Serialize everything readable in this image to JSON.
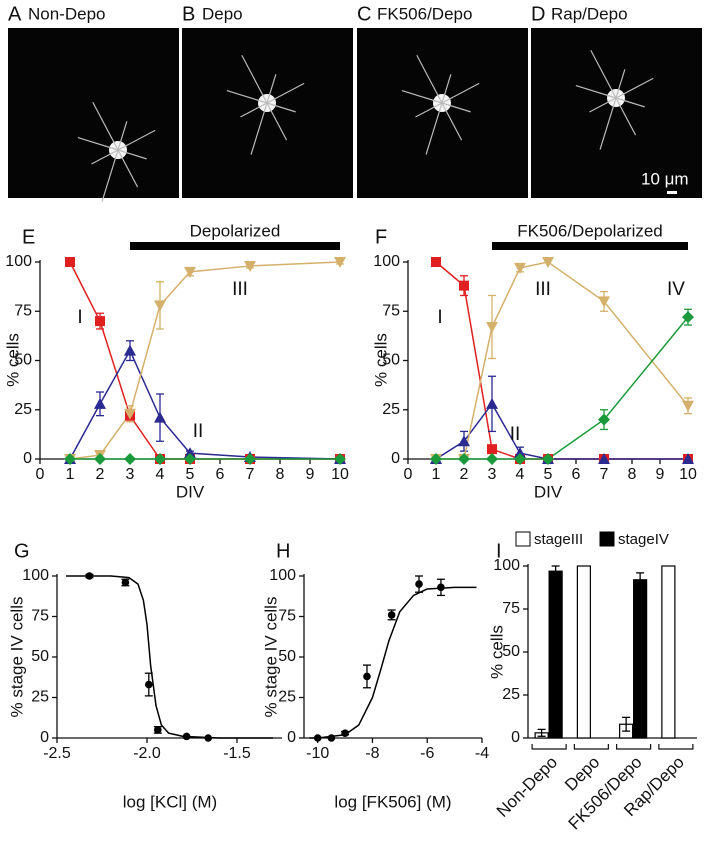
{
  "image_panels": [
    {
      "letter": "A",
      "label": "Non-Depo"
    },
    {
      "letter": "B",
      "label": "Depo"
    },
    {
      "letter": "C",
      "label": "FK506/Depo"
    },
    {
      "letter": "D",
      "label": "Rap/Depo",
      "scale_label": "10 μm"
    }
  ],
  "chart_data": [
    {
      "type": "line",
      "panel": "E",
      "xlabel": "DIV",
      "ylabel": "% cells",
      "x": [
        1,
        2,
        3,
        4,
        5,
        7,
        10
      ],
      "xlim": [
        0,
        10
      ],
      "xticks": [
        0,
        1,
        2,
        3,
        4,
        5,
        6,
        7,
        8,
        9,
        10
      ],
      "ylim": [
        0,
        100
      ],
      "yticks": [
        0,
        25,
        50,
        75,
        100
      ],
      "treatment": {
        "label": "Depolarized",
        "start": 3,
        "end": 10
      },
      "series": [
        {
          "name": "I",
          "color": "#e02020",
          "marker": "square",
          "values": [
            100,
            70,
            22,
            0,
            0,
            0,
            0
          ],
          "errors": [
            0,
            4,
            3,
            0,
            0,
            0,
            0
          ]
        },
        {
          "name": "II",
          "color": "#2a2a90",
          "marker": "triangle",
          "values": [
            0,
            28,
            55,
            21,
            3,
            1,
            0
          ],
          "errors": [
            0,
            6,
            5,
            12,
            1,
            1,
            0
          ]
        },
        {
          "name": "III",
          "color": "#d4b06a",
          "marker": "triangle-down",
          "values": [
            0,
            2,
            23,
            78,
            95,
            98,
            100
          ],
          "errors": [
            0,
            2,
            4,
            12,
            2,
            1,
            1
          ]
        },
        {
          "color": "#1a9a3a",
          "marker": "diamond",
          "values": [
            0,
            0,
            0,
            0,
            0,
            0,
            0
          ],
          "errors": [
            0,
            0,
            0,
            0,
            0,
            0,
            0
          ]
        }
      ]
    },
    {
      "type": "line",
      "panel": "F",
      "xlabel": "DIV",
      "ylabel": "% cells",
      "x": [
        1,
        2,
        3,
        4,
        5,
        7,
        10
      ],
      "xlim": [
        0,
        10
      ],
      "xticks": [
        0,
        1,
        2,
        3,
        4,
        5,
        6,
        7,
        8,
        9,
        10
      ],
      "ylim": [
        0,
        100
      ],
      "yticks": [
        0,
        25,
        50,
        75,
        100
      ],
      "treatment": {
        "label": "FK506/Depolarized",
        "start": 3,
        "end": 10
      },
      "series": [
        {
          "name": "I",
          "color": "#e02020",
          "marker": "square",
          "values": [
            100,
            88,
            5,
            0,
            0,
            0,
            0
          ],
          "errors": [
            0,
            5,
            0,
            0,
            0,
            0,
            0
          ]
        },
        {
          "name": "II",
          "color": "#2a2a90",
          "marker": "triangle",
          "values": [
            0,
            9,
            28,
            3,
            0,
            0,
            0
          ],
          "errors": [
            0,
            5,
            14,
            3,
            0,
            0,
            0
          ]
        },
        {
          "name": "III",
          "color": "#d4b06a",
          "marker": "triangle-down",
          "values": [
            0,
            0,
            67,
            97,
            100,
            80,
            27
          ],
          "errors": [
            0,
            0,
            16,
            2,
            0,
            5,
            4
          ]
        },
        {
          "name": "IV",
          "color": "#1a9a3a",
          "marker": "diamond",
          "values": [
            0,
            0,
            0,
            0,
            0,
            20,
            72
          ],
          "errors": [
            0,
            0,
            0,
            0,
            0,
            5,
            4
          ]
        }
      ]
    },
    {
      "type": "scatter",
      "panel": "G",
      "xlabel": "log [KCl] (M)",
      "ylabel": "% stage IV cells",
      "color": "#000000",
      "x": [
        -2.32,
        -2.12,
        -1.99,
        -1.94,
        -1.78,
        -1.66
      ],
      "values": [
        100,
        96,
        33,
        5,
        1,
        0
      ],
      "errors": [
        1,
        2,
        7,
        2,
        0,
        0
      ],
      "fit": {
        "x": [
          -2.45,
          -2.2,
          -2.1,
          -2.05,
          -2.02,
          -2.0,
          -1.98,
          -1.95,
          -1.92,
          -1.88,
          -1.8,
          -1.6,
          -1.3
        ],
        "values": [
          100,
          100,
          99,
          95,
          85,
          70,
          45,
          20,
          8,
          3,
          1,
          0,
          0
        ]
      },
      "xlim": [
        -2.5,
        -1.25
      ],
      "xticks": [
        -2.5,
        {
          "value": -2,
          "label": "-2.0"
        },
        {
          "value": -1.5,
          "label": "-1.5"
        }
      ],
      "ylim": [
        0,
        100
      ],
      "yticks": [
        0,
        25,
        50,
        75,
        100
      ]
    },
    {
      "type": "scatter",
      "panel": "H",
      "xlabel": "log [FK506] (M)",
      "ylabel": "% stage IV cells",
      "color": "#000000",
      "x": [
        -10,
        -9.5,
        -9,
        -8.2,
        -7.3,
        -6.3,
        -5.5
      ],
      "values": [
        0,
        0,
        3,
        38,
        76,
        95,
        93
      ],
      "errors": [
        0,
        0,
        1,
        7,
        3,
        5,
        5
      ],
      "fit": {
        "x": [
          -10.3,
          -10,
          -9,
          -8.5,
          -8,
          -7.7,
          -7.4,
          -7,
          -6.5,
          -6,
          -5,
          -4.2
        ],
        "values": [
          0,
          0,
          2,
          8,
          25,
          42,
          60,
          78,
          88,
          92,
          93,
          93
        ]
      },
      "xlim": [
        -10.5,
        -4
      ],
      "xticks": [
        -10,
        -8,
        -6,
        -4
      ],
      "ylim": [
        0,
        100
      ],
      "yticks": [
        0,
        25,
        50,
        75,
        100
      ]
    },
    {
      "type": "bar",
      "panel": "I",
      "ylabel": "% cells",
      "categories": [
        "Non-Depo",
        "Depo",
        "FK506/Depo",
        "Rap/Depo"
      ],
      "series": [
        {
          "name": "stageIII",
          "color": "#ffffff",
          "values": [
            3,
            100,
            8,
            100
          ],
          "errors": [
            2,
            0,
            4,
            0
          ]
        },
        {
          "name": "stageIV",
          "color": "#000000",
          "values": [
            97,
            0,
            92,
            0
          ],
          "errors": [
            3,
            0,
            4,
            0
          ]
        }
      ],
      "ylim": [
        0,
        100
      ],
      "yticks": [
        0,
        25,
        50,
        75,
        100
      ]
    }
  ]
}
